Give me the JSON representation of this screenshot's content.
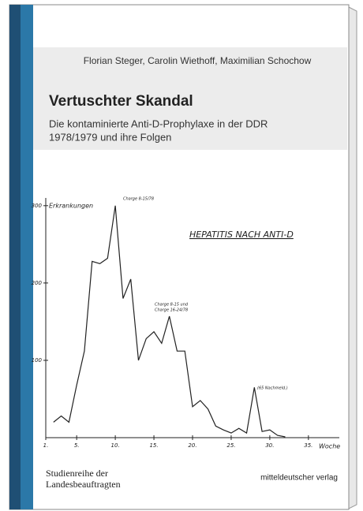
{
  "cover": {
    "authors": "Florian Steger, Carolin Wiethoff, Maximilian Schochow",
    "title": "Vertuschter Skandal",
    "subtitle_lines": [
      "Die kontaminierte Anti-D-Prophylaxe in der DDR",
      "1978/1979 und ihre Folgen"
    ],
    "series_lines": [
      "Studienreihe der",
      "Landesbeauftragten"
    ],
    "publisher": "mitteldeutscher verlag"
  },
  "chart_data": {
    "type": "line",
    "title": "HEPATITIS NACH ANTI-D",
    "y_label": "Erkrankungen",
    "x_label": "Woche",
    "annotations": [
      "Charge 8-15/78",
      "Charge 8-15 und",
      "Charge 16-24/78",
      "(65 Nachmeld.)"
    ],
    "x": [
      2,
      3,
      4,
      5,
      6,
      7,
      8,
      9,
      10,
      11,
      12,
      13,
      14,
      15,
      16,
      17,
      18,
      19,
      20,
      21,
      22,
      23,
      24,
      25,
      26,
      27,
      28,
      29,
      30,
      31,
      32
    ],
    "series": [
      {
        "color": "#222222",
        "values": [
          20,
          28,
          20,
          68,
          112,
          228,
          225,
          232,
          300,
          180,
          205,
          100,
          128,
          137,
          122,
          157,
          112,
          112,
          40,
          48,
          37,
          15,
          10,
          6,
          12,
          6,
          65,
          8,
          10,
          3,
          1
        ]
      }
    ],
    "xlim": [
      1,
      39
    ],
    "ylim": [
      0,
      310
    ],
    "xticks": [
      {
        "value": 1,
        "label": "1."
      },
      {
        "value": 5,
        "label": "5."
      },
      {
        "value": 10,
        "label": "10."
      },
      {
        "value": 15,
        "label": "15."
      },
      {
        "value": 20,
        "label": "20."
      },
      {
        "value": 25,
        "label": "25."
      },
      {
        "value": 30,
        "label": "30."
      },
      {
        "value": 35,
        "label": "35."
      }
    ],
    "yticks": [
      100,
      200,
      300
    ]
  }
}
